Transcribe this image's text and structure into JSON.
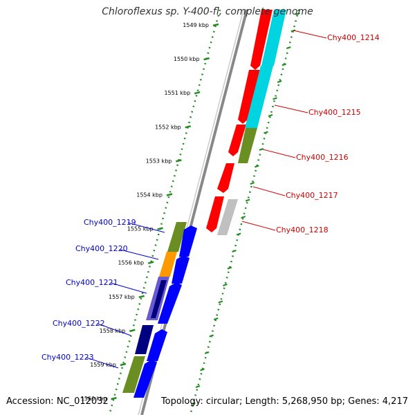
{
  "title": "Chloroflexus sp. Y-400-fl, complete genome",
  "accession": "Accession: NC_012032",
  "topology": "Topology: circular; Length: 5,268,950 bp; Genes: 4,217",
  "colors": {
    "red": "#ff0000",
    "cyan": "#00d4e0",
    "olive": "#6b8e23",
    "orange": "#ff9900",
    "slate_blue": "#6a5acd",
    "navy": "#000080",
    "blue": "#0000ff",
    "gray": "#c0c0c0",
    "tick_green": "#228b22",
    "label_red": "#cc0000",
    "label_blue": "#0000cc"
  },
  "scale": {
    "ticks": [
      "1549 kbp",
      "1550 kbp",
      "1551 kbp",
      "1552 kbp",
      "1553 kbp",
      "1554 kbp",
      "1555 kbp",
      "1556 kbp",
      "1557 kbp",
      "1558 kbp",
      "1559 kbp",
      "1560 kbp"
    ]
  },
  "genes_forward": [
    {
      "label": "Chy400_1214",
      "color": "red"
    },
    {
      "label": "Chy400_1215",
      "color": "red"
    },
    {
      "label": "Chy400_1216",
      "color": "red"
    },
    {
      "label": "Chy400_1217",
      "color": "red"
    },
    {
      "label": "Chy400_1218",
      "color": "red"
    }
  ],
  "genes_reverse": [
    {
      "label": "Chy400_1219",
      "color": "olive"
    },
    {
      "label": "Chy400_1220",
      "color": "orange"
    },
    {
      "label": "Chy400_1221",
      "color": "slate_blue"
    },
    {
      "label": "Chy400_1222",
      "color": "navy"
    },
    {
      "label": "Chy400_1223",
      "color": "olive"
    }
  ]
}
